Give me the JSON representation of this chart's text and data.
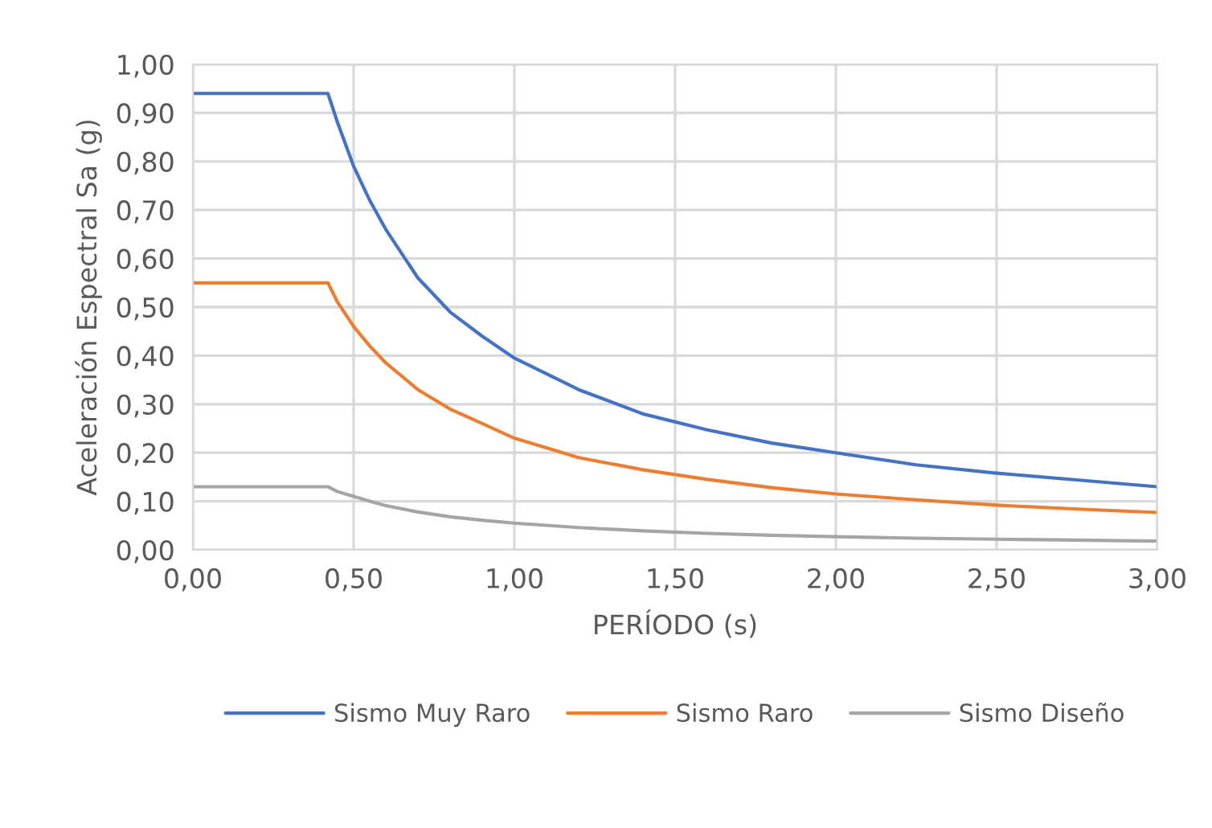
{
  "chart_data": {
    "type": "line",
    "xlabel": "PERÍODO (s)",
    "ylabel": "Aceleración Espectral Sa (g)",
    "x": [
      0,
      0.1,
      0.2,
      0.3,
      0.4,
      0.42,
      0.45,
      0.5,
      0.55,
      0.6,
      0.7,
      0.8,
      0.9,
      1.0,
      1.2,
      1.4,
      1.6,
      1.8,
      2.0,
      2.25,
      2.5,
      2.75,
      3.0
    ],
    "series": [
      {
        "name": "Sismo Muy Raro",
        "color": "#4472c4",
        "values": [
          0.94,
          0.94,
          0.94,
          0.94,
          0.94,
          0.94,
          0.88,
          0.79,
          0.72,
          0.66,
          0.56,
          0.49,
          0.44,
          0.395,
          0.33,
          0.28,
          0.247,
          0.22,
          0.2,
          0.175,
          0.158,
          0.144,
          0.13
        ]
      },
      {
        "name": "Sismo Raro",
        "color": "#ed7d31",
        "values": [
          0.55,
          0.55,
          0.55,
          0.55,
          0.55,
          0.55,
          0.51,
          0.46,
          0.42,
          0.385,
          0.33,
          0.29,
          0.26,
          0.23,
          0.19,
          0.165,
          0.145,
          0.128,
          0.115,
          0.103,
          0.092,
          0.084,
          0.077
        ]
      },
      {
        "name": "Sismo Diseño",
        "color": "#a5a5a5",
        "values": [
          0.13,
          0.13,
          0.13,
          0.13,
          0.13,
          0.13,
          0.12,
          0.11,
          0.1,
          0.091,
          0.078,
          0.068,
          0.061,
          0.055,
          0.046,
          0.039,
          0.034,
          0.03,
          0.027,
          0.024,
          0.022,
          0.02,
          0.018
        ]
      }
    ],
    "xlim": [
      0,
      3.0
    ],
    "xticks": [
      {
        "value": 0,
        "label": "0,00"
      },
      {
        "value": 0.5,
        "label": "0,50"
      },
      {
        "value": 1.0,
        "label": "1,00"
      },
      {
        "value": 1.5,
        "label": "1,50"
      },
      {
        "value": 2.0,
        "label": "2,00"
      },
      {
        "value": 2.5,
        "label": "2,50"
      },
      {
        "value": 3.0,
        "label": "3,00"
      }
    ],
    "ylim": [
      0,
      1.0
    ],
    "yticks": [
      {
        "value": 0,
        "label": "0,00"
      },
      {
        "value": 0.1,
        "label": "0,10"
      },
      {
        "value": 0.2,
        "label": "0,20"
      },
      {
        "value": 0.3,
        "label": "0,30"
      },
      {
        "value": 0.4,
        "label": "0,40"
      },
      {
        "value": 0.5,
        "label": "0,50"
      },
      {
        "value": 0.6,
        "label": "0,60"
      },
      {
        "value": 0.7,
        "label": "0,70"
      },
      {
        "value": 0.8,
        "label": "0,80"
      },
      {
        "value": 0.9,
        "label": "0,90"
      },
      {
        "value": 1.0,
        "label": "1,00"
      }
    ],
    "grid": true,
    "legend": "bottom",
    "marker": "none",
    "line_style": "solid"
  }
}
